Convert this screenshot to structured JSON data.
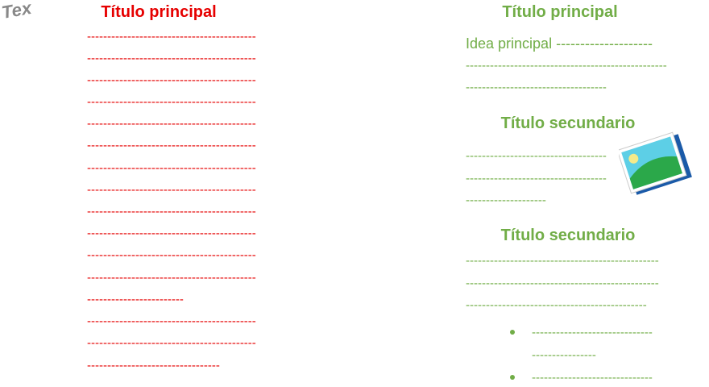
{
  "corner_text": "Tex",
  "left": {
    "title": "Título principal",
    "lines": [
      "------------------------------------------",
      "------------------------------------------",
      "------------------------------------------",
      "------------------------------------------",
      "------------------------------------------",
      "------------------------------------------",
      "------------------------------------------",
      "------------------------------------------",
      "------------------------------------------",
      "------------------------------------------",
      "------------------------------------------",
      "------------------------------------------",
      "------------------------",
      "------------------------------------------",
      "------------------------------------------",
      "---------------------------------"
    ]
  },
  "right": {
    "title": "Título principal",
    "idea": "Idea principal --------------------",
    "lines": [
      "--------------------------------------------------",
      "-----------------------------------"
    ],
    "sections": [
      {
        "title": "Título secundario",
        "lines": [
          "-----------------------------------",
          "-----------------------------------",
          "--------------------"
        ]
      },
      {
        "title": "Título secundario",
        "lines": [
          "------------------------------------------------",
          "------------------------------------------------",
          "---------------------------------------------"
        ]
      }
    ],
    "bullets": [
      [
        "------------------------------",
        "----------------"
      ],
      [
        "------------------------------"
      ]
    ]
  }
}
